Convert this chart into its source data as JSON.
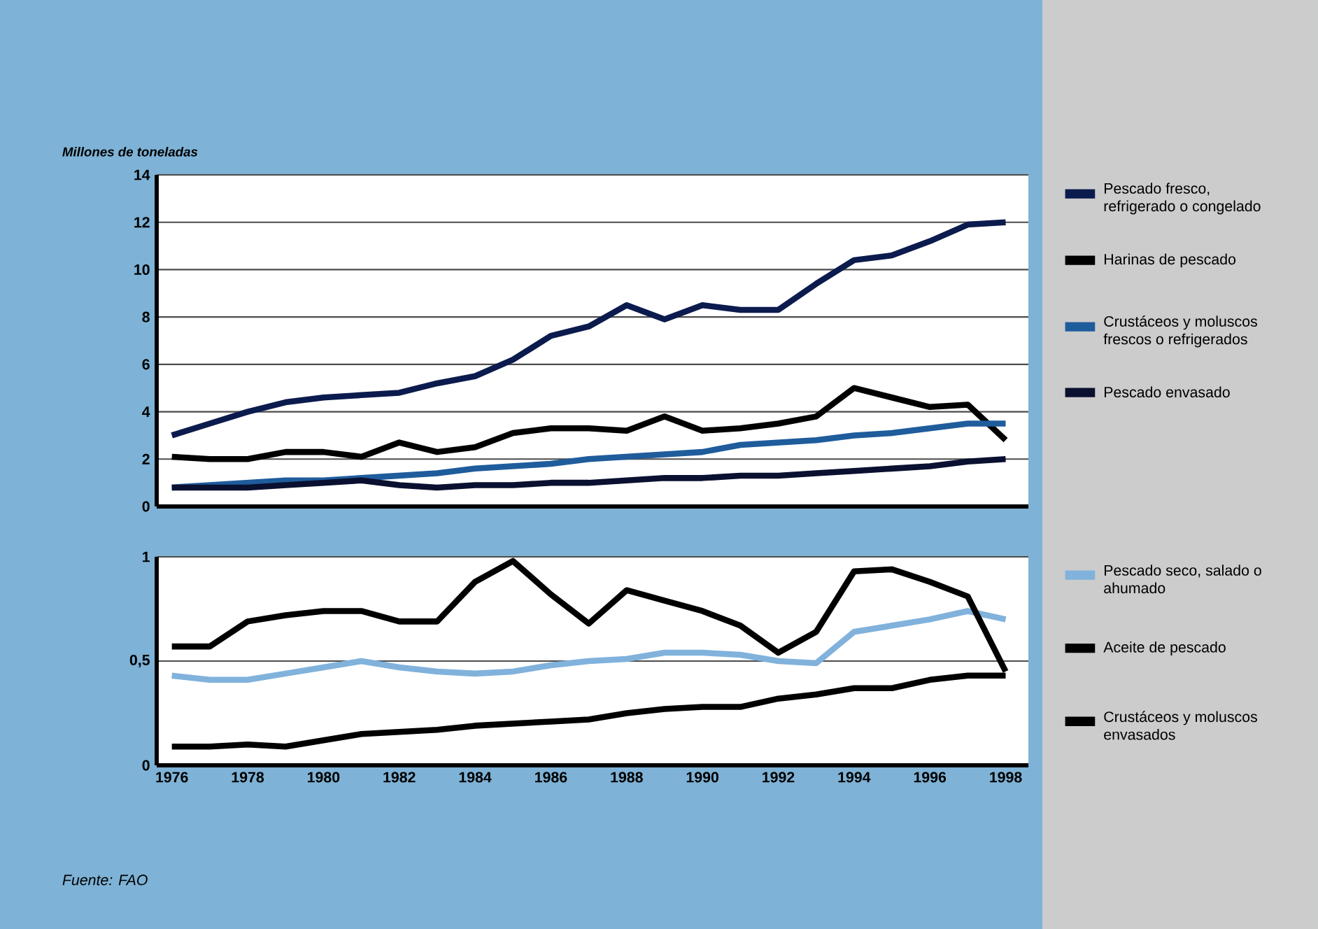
{
  "chart_data": [
    {
      "type": "line",
      "ylabel": "Millones de toneladas",
      "x": [
        1976,
        1977,
        1978,
        1979,
        1980,
        1981,
        1982,
        1983,
        1984,
        1985,
        1986,
        1987,
        1988,
        1989,
        1990,
        1991,
        1992,
        1993,
        1994,
        1995,
        1996,
        1997,
        1998
      ],
      "xlim": [
        1975.6,
        1998.6
      ],
      "ylim": [
        0,
        14
      ],
      "yticks": [
        0,
        2,
        4,
        6,
        8,
        10,
        12,
        14
      ],
      "tick_labels": "y",
      "grid": "y",
      "legend": "right",
      "series": [
        {
          "name": "Pescado fresco, refrigerado o congelado",
          "color": "#0c1b4d",
          "values": [
            3.0,
            3.5,
            4.0,
            4.4,
            4.6,
            4.7,
            4.8,
            5.2,
            5.5,
            6.2,
            7.2,
            7.6,
            8.5,
            7.9,
            8.5,
            8.3,
            8.3,
            9.4,
            10.4,
            10.6,
            11.2,
            11.9,
            12.0
          ]
        },
        {
          "name": "Harinas de pescado",
          "color": "#000000",
          "values": [
            2.1,
            2.0,
            2.0,
            2.3,
            2.3,
            2.1,
            2.7,
            2.3,
            2.5,
            3.1,
            3.3,
            3.3,
            3.2,
            3.8,
            3.2,
            3.3,
            3.5,
            3.8,
            5.0,
            4.6,
            4.2,
            4.3,
            2.8
          ]
        },
        {
          "name": "Crustáceos y moluscos frescos o refrigerados",
          "color": "#1f5c9c",
          "values": [
            0.8,
            0.9,
            1.0,
            1.1,
            1.1,
            1.2,
            1.3,
            1.4,
            1.6,
            1.7,
            1.8,
            2.0,
            2.1,
            2.2,
            2.3,
            2.6,
            2.7,
            2.8,
            3.0,
            3.1,
            3.3,
            3.5,
            3.5
          ]
        },
        {
          "name": "Pescado envasado",
          "color": "#0a1030",
          "values": [
            0.8,
            0.8,
            0.8,
            0.9,
            1.0,
            1.1,
            0.9,
            0.8,
            0.9,
            0.9,
            1.0,
            1.0,
            1.1,
            1.2,
            1.2,
            1.3,
            1.3,
            1.4,
            1.5,
            1.6,
            1.7,
            1.9,
            2.0
          ]
        }
      ]
    },
    {
      "type": "line",
      "annotations": [
        "Fuente: FAO"
      ],
      "x": [
        1976,
        1977,
        1978,
        1979,
        1980,
        1981,
        1982,
        1983,
        1984,
        1985,
        1986,
        1987,
        1988,
        1989,
        1990,
        1991,
        1992,
        1993,
        1994,
        1995,
        1996,
        1997,
        1998
      ],
      "xlim": [
        1975.6,
        1998.6
      ],
      "xticks": [
        1976,
        1978,
        1980,
        1982,
        1984,
        1986,
        1988,
        1990,
        1992,
        1994,
        1996,
        1998
      ],
      "ylim": [
        0,
        1
      ],
      "yticks": [
        0,
        {
          "value": 0.5,
          "label": "0,5"
        },
        1
      ],
      "grid": "y",
      "legend": "right",
      "series": [
        {
          "name": "Pescado seco, salado o ahumado",
          "color": "#80b2dc",
          "values": [
            0.43,
            0.41,
            0.41,
            0.44,
            0.47,
            0.5,
            0.47,
            0.45,
            0.44,
            0.45,
            0.48,
            0.5,
            0.51,
            0.54,
            0.54,
            0.53,
            0.5,
            0.49,
            0.64,
            0.67,
            0.7,
            0.74,
            0.7
          ]
        },
        {
          "name": "Aceite de pescado",
          "color": "#000000",
          "values": [
            0.57,
            0.57,
            0.69,
            0.72,
            0.74,
            0.74,
            0.69,
            0.69,
            0.88,
            0.98,
            0.82,
            0.68,
            0.84,
            0.79,
            0.74,
            0.67,
            0.54,
            0.64,
            0.93,
            0.94,
            0.88,
            0.81,
            0.45
          ]
        },
        {
          "name": "Crustáceos y moluscos envasados",
          "color": "#000000",
          "values": [
            0.09,
            0.09,
            0.1,
            0.09,
            0.12,
            0.15,
            0.16,
            0.17,
            0.19,
            0.2,
            0.21,
            0.22,
            0.25,
            0.27,
            0.28,
            0.28,
            0.32,
            0.34,
            0.37,
            0.37,
            0.41,
            0.43,
            0.43
          ]
        }
      ]
    }
  ]
}
